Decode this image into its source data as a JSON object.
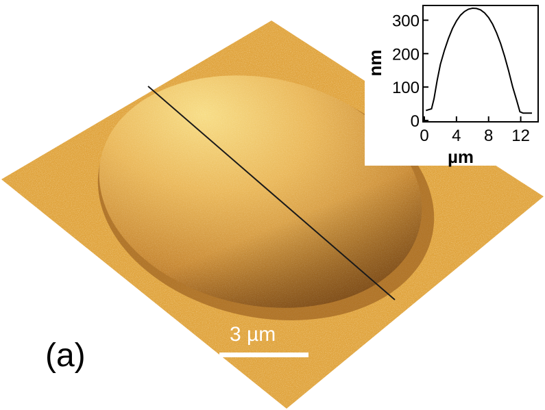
{
  "figure": {
    "panel_label": "(a)",
    "scale_bar_label": "3 µm",
    "colors": {
      "surface": "#e0a43e",
      "surface_light": "#f3d275",
      "surface_shadow": "#a8641c",
      "line": "#1a1a1a"
    }
  },
  "chart_data": {
    "type": "line",
    "title": "",
    "xlabel": "µm",
    "ylabel": "nm",
    "xlim": [
      0,
      14
    ],
    "ylim": [
      0,
      340
    ],
    "x_ticks": [
      0,
      4,
      8,
      12
    ],
    "x_tick_labels": [
      "0",
      "4",
      "8",
      "12"
    ],
    "y_ticks": [
      0,
      100,
      200,
      300
    ],
    "y_tick_labels": [
      "0",
      "100",
      "200",
      "300"
    ],
    "grid": false,
    "series": [
      {
        "x": [
          0.2,
          0.9,
          1.2,
          1.6,
          2.0,
          2.5,
          3.0,
          3.5,
          4.0,
          4.5,
          5.0,
          5.5,
          6.0,
          6.5,
          7.0,
          7.5,
          8.0,
          8.5,
          9.0,
          9.5,
          10.0,
          10.5,
          11.0,
          11.5,
          11.9,
          12.3,
          13.4
        ],
        "y": [
          30,
          35,
          65,
          120,
          168,
          210,
          245,
          275,
          298,
          315,
          326,
          333,
          336,
          335,
          331,
          322,
          308,
          288,
          262,
          230,
          192,
          148,
          100,
          60,
          26,
          22,
          22
        ]
      }
    ]
  }
}
